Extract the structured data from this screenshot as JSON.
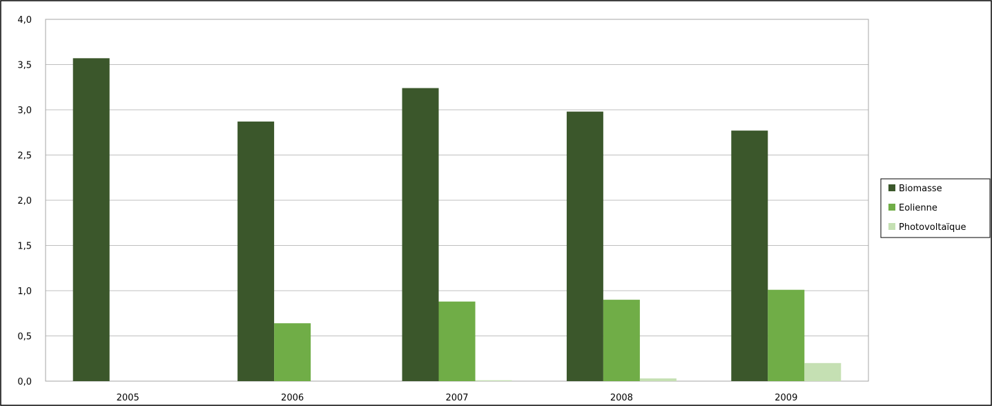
{
  "chart_data": {
    "type": "bar",
    "title": "",
    "categories": [
      "2005",
      "2006",
      "2007",
      "2008",
      "2009"
    ],
    "series": [
      {
        "name": "Biomasse",
        "color": "#3b572b",
        "values": [
          3.57,
          2.87,
          3.24,
          2.98,
          2.77
        ]
      },
      {
        "name": "Eolienne",
        "color": "#70ad47",
        "values": [
          0.0,
          0.64,
          0.88,
          0.9,
          1.01
        ]
      },
      {
        "name": "Photovoltaïque",
        "color": "#c5e0b3",
        "values": [
          0.0,
          0.0,
          0.01,
          0.03,
          0.2
        ]
      }
    ],
    "yticks": [
      "0,0",
      "0,5",
      "1,0",
      "1,5",
      "2,0",
      "2,5",
      "3,0",
      "3,5",
      "4,0"
    ],
    "ylim": [
      0,
      4
    ],
    "grid": true,
    "legend_position": "right",
    "xlabel": "",
    "ylabel": ""
  }
}
